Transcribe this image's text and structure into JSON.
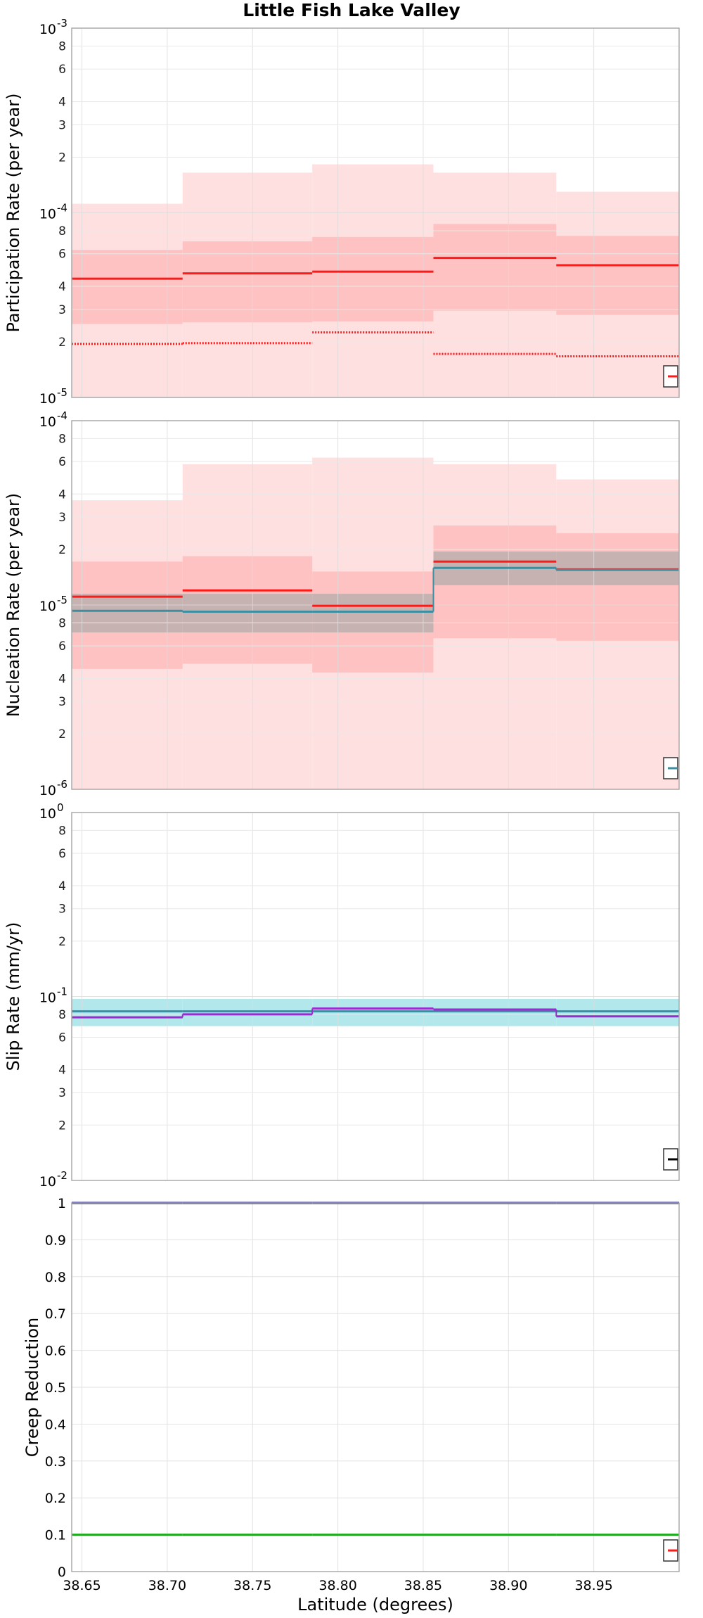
{
  "title": "Little Fish Lake Valley",
  "xlabel": "Latitude (degrees)",
  "x_ticks": [
    38.65,
    38.7,
    38.75,
    38.8,
    38.85,
    38.9,
    38.95
  ],
  "x_tick_labels": [
    "38.65",
    "38.70",
    "38.75",
    "38.80",
    "38.85",
    "38.90",
    "38.95"
  ],
  "colors": {
    "red": "#ff1a1a",
    "red_fill_light": "#ffe0e0",
    "red_fill_mid": "#ffc2c2",
    "teal": "#3d8ea0",
    "teal_fill": "#b2e8ec",
    "gray_fill": "#c7b2b2",
    "purple": "#9a2bd0",
    "navy": "#1a1a8c",
    "green": "#1aaa1a"
  },
  "chart_data": [
    {
      "type": "line",
      "ylabel": "Participation Rate (per year)",
      "yscale": "log",
      "ylim": [
        1e-05,
        0.001
      ],
      "grid": true,
      "legend": "bottom-right",
      "x_edges": [
        38.644,
        38.709,
        38.785,
        38.856,
        38.928,
        39.0
      ],
      "series": [
        {
          "style": "band",
          "color": "red_fill_light",
          "lower": [
            1e-05,
            1e-05,
            1e-05,
            1e-05,
            1e-05
          ],
          "upper": [
            0.000112,
            0.000165,
            0.000183,
            0.000165,
            0.00013
          ]
        },
        {
          "style": "band",
          "color": "red_fill_mid",
          "lower": [
            2.5e-05,
            2.55e-05,
            2.58e-05,
            2.95e-05,
            2.8e-05
          ],
          "upper": [
            6.3e-05,
            7e-05,
            7.4e-05,
            8.7e-05,
            7.5e-05
          ]
        },
        {
          "style": "solid",
          "color": "red",
          "values": [
            4.4e-05,
            4.7e-05,
            4.8e-05,
            5.7e-05,
            5.2e-05
          ]
        },
        {
          "style": "dotted",
          "color": "red",
          "values": [
            1.95e-05,
            1.97e-05,
            2.25e-05,
            1.72e-05,
            1.67e-05
          ]
        }
      ]
    },
    {
      "type": "line",
      "ylabel": "Nucleation Rate (per year)",
      "yscale": "log",
      "ylim": [
        1e-06,
        0.0001
      ],
      "grid": true,
      "legend": "bottom-right",
      "x_edges": [
        38.644,
        38.709,
        38.785,
        38.856,
        38.928,
        39.0
      ],
      "series": [
        {
          "style": "band",
          "color": "red_fill_light",
          "lower": [
            1e-06,
            1e-06,
            1e-06,
            1e-06,
            1e-06
          ],
          "upper": [
            3.7e-05,
            5.8e-05,
            6.3e-05,
            5.8e-05,
            4.8e-05
          ]
        },
        {
          "style": "band",
          "color": "red_fill_mid",
          "lower": [
            4.5e-06,
            4.8e-06,
            4.3e-06,
            6.6e-06,
            6.4e-06
          ],
          "upper": [
            1.72e-05,
            1.84e-05,
            1.52e-05,
            2.7e-05,
            2.45e-05
          ]
        },
        {
          "style": "band",
          "color": "gray_fill",
          "lower": [
            7.1e-06,
            7.1e-06,
            7.1e-06,
            1.28e-05,
            1.28e-05
          ],
          "upper": [
            1.15e-05,
            1.15e-05,
            1.15e-05,
            1.95e-05,
            1.95e-05
          ]
        },
        {
          "style": "solid",
          "color": "red",
          "values": [
            1.11e-05,
            1.2e-05,
            9.9e-06,
            1.72e-05,
            1.56e-05
          ]
        },
        {
          "style": "solid",
          "color": "teal",
          "values": [
            9.3e-06,
            9.2e-06,
            9.2e-06,
            1.59e-05,
            1.55e-05
          ]
        }
      ]
    },
    {
      "type": "line",
      "ylabel": "Slip Rate (mm/yr)",
      "yscale": "log",
      "ylim": [
        0.01,
        1
      ],
      "grid": true,
      "legend": "bottom-right",
      "x_edges": [
        38.644,
        38.709,
        38.785,
        38.856,
        38.928,
        39.0
      ],
      "series": [
        {
          "style": "band",
          "color": "teal_fill",
          "lower": [
            0.069,
            0.069,
            0.069,
            0.069,
            0.069
          ],
          "upper": [
            0.097,
            0.097,
            0.097,
            0.097,
            0.097
          ]
        },
        {
          "style": "solid",
          "color": "teal",
          "values": [
            0.083,
            0.083,
            0.083,
            0.083,
            0.083
          ]
        },
        {
          "style": "solid",
          "color": "purple",
          "values": [
            0.077,
            0.08,
            0.086,
            0.085,
            0.078
          ]
        }
      ]
    },
    {
      "type": "line",
      "ylabel": "Creep Reduction",
      "yscale": "linear",
      "ylim": [
        0,
        1
      ],
      "y_ticks": [
        0,
        0.1,
        0.2,
        0.3,
        0.4,
        0.5,
        0.6,
        0.7,
        0.8,
        0.9,
        1
      ],
      "y_tick_labels": [
        "0",
        "0.1",
        "0.2",
        "0.3",
        "0.4",
        "0.5",
        "0.6",
        "0.7",
        "0.8",
        "0.9",
        "1"
      ],
      "grid": true,
      "legend": "bottom-right",
      "x_edges": [
        38.644,
        38.709,
        38.785,
        38.856,
        38.928,
        39.0
      ],
      "series": [
        {
          "style": "solid",
          "color": "navy",
          "values": [
            1,
            1,
            1,
            1,
            1
          ]
        },
        {
          "style": "solid",
          "color": "green",
          "values": [
            0.1,
            0.1,
            0.1,
            0.1,
            0.1
          ]
        }
      ]
    }
  ]
}
